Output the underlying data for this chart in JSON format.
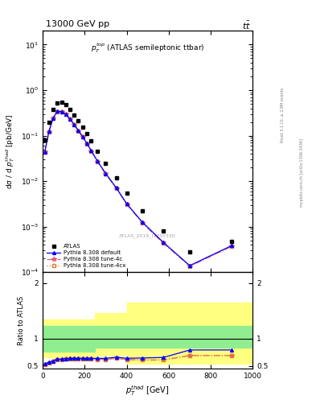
{
  "title_header": "13000 GeV pp",
  "title_right": "tt̅",
  "inner_title": "$p_T^{top}$ (ATLAS semileptonic ttbar)",
  "watermark": "ATLAS_2019_I1750330",
  "right_label1": "Rivet 3.1.10, ≥ 2.8M events",
  "right_label2": "mcplots.cern.ch [arXiv:1306.3436]",
  "xlabel": "$p_T^{thad}$ [GeV]",
  "ylabel": "dσ / d $p_T^{thad}$ [pb/GeV]",
  "ratio_ylabel": "Ratio to ATLAS",
  "atlas_x": [
    10,
    30,
    50,
    70,
    90,
    110,
    130,
    150,
    170,
    190,
    210,
    230,
    260,
    300,
    350,
    400,
    475,
    575,
    700,
    900
  ],
  "atlas_y": [
    0.08,
    0.2,
    0.38,
    0.52,
    0.55,
    0.48,
    0.38,
    0.28,
    0.21,
    0.155,
    0.11,
    0.078,
    0.046,
    0.025,
    0.012,
    0.0055,
    0.0022,
    0.00082,
    0.00028,
    0.00047
  ],
  "pythia_default_x": [
    10,
    30,
    50,
    70,
    90,
    110,
    130,
    150,
    170,
    190,
    210,
    230,
    260,
    300,
    350,
    400,
    475,
    575,
    700,
    900
  ],
  "pythia_default_y": [
    0.044,
    0.125,
    0.245,
    0.345,
    0.335,
    0.295,
    0.235,
    0.175,
    0.13,
    0.096,
    0.068,
    0.048,
    0.028,
    0.0148,
    0.0072,
    0.0032,
    0.00125,
    0.00045,
    0.00014,
    0.000385
  ],
  "pythia_4c_x": [
    10,
    30,
    50,
    70,
    90,
    110,
    130,
    150,
    170,
    190,
    210,
    230,
    260,
    300,
    350,
    400,
    475,
    575,
    700,
    900
  ],
  "pythia_4c_y": [
    0.043,
    0.122,
    0.24,
    0.338,
    0.328,
    0.289,
    0.23,
    0.171,
    0.127,
    0.093,
    0.066,
    0.046,
    0.027,
    0.0143,
    0.007,
    0.0031,
    0.0012,
    0.00043,
    0.000135,
    0.00037
  ],
  "pythia_4cx_x": [
    10,
    30,
    50,
    70,
    90,
    110,
    130,
    150,
    170,
    190,
    210,
    230,
    260,
    300,
    350,
    400,
    475,
    575,
    700,
    900
  ],
  "pythia_4cx_y": [
    0.043,
    0.122,
    0.24,
    0.338,
    0.328,
    0.289,
    0.23,
    0.171,
    0.127,
    0.093,
    0.066,
    0.046,
    0.027,
    0.0143,
    0.007,
    0.0031,
    0.0012,
    0.00044,
    0.000136,
    0.00037
  ],
  "ratio_default_x": [
    10,
    30,
    50,
    70,
    90,
    110,
    130,
    150,
    170,
    190,
    210,
    230,
    260,
    300,
    350,
    400,
    475,
    575,
    700,
    900
  ],
  "ratio_default_y": [
    0.535,
    0.565,
    0.59,
    0.625,
    0.625,
    0.635,
    0.638,
    0.638,
    0.638,
    0.638,
    0.638,
    0.638,
    0.638,
    0.638,
    0.66,
    0.64,
    0.645,
    0.655,
    0.79,
    0.79
  ],
  "ratio_4c_x": [
    10,
    30,
    50,
    70,
    90,
    110,
    130,
    150,
    170,
    190,
    210,
    230,
    260,
    300,
    350,
    400,
    475,
    575,
    700,
    900
  ],
  "ratio_4c_y": [
    0.53,
    0.56,
    0.585,
    0.618,
    0.618,
    0.628,
    0.63,
    0.63,
    0.628,
    0.628,
    0.628,
    0.622,
    0.62,
    0.62,
    0.638,
    0.618,
    0.608,
    0.608,
    0.69,
    0.69
  ],
  "ratio_4cx_x": [
    10,
    30,
    50,
    70,
    90,
    110,
    130,
    150,
    170,
    190,
    210,
    230,
    260,
    300,
    350,
    400,
    475,
    575,
    700,
    900
  ],
  "ratio_4cx_y": [
    0.53,
    0.56,
    0.585,
    0.618,
    0.618,
    0.628,
    0.63,
    0.63,
    0.628,
    0.628,
    0.628,
    0.622,
    0.62,
    0.62,
    0.638,
    0.618,
    0.608,
    0.612,
    0.69,
    0.69
  ],
  "band_x_edges": [
    0,
    100,
    250,
    400,
    500,
    1000
  ],
  "band_green_low": [
    0.76,
    0.76,
    0.84,
    0.84,
    0.84,
    0.84
  ],
  "band_green_high": [
    1.22,
    1.22,
    1.22,
    1.22,
    1.22,
    1.22
  ],
  "band_yellow_low": [
    0.66,
    0.66,
    0.68,
    0.54,
    0.54,
    0.54
  ],
  "band_yellow_high": [
    1.34,
    1.34,
    1.46,
    1.65,
    1.65,
    1.65
  ],
  "ylim_main": [
    0.0001,
    20
  ],
  "ylim_ratio": [
    0.45,
    2.2
  ],
  "xlim": [
    0,
    1000
  ]
}
